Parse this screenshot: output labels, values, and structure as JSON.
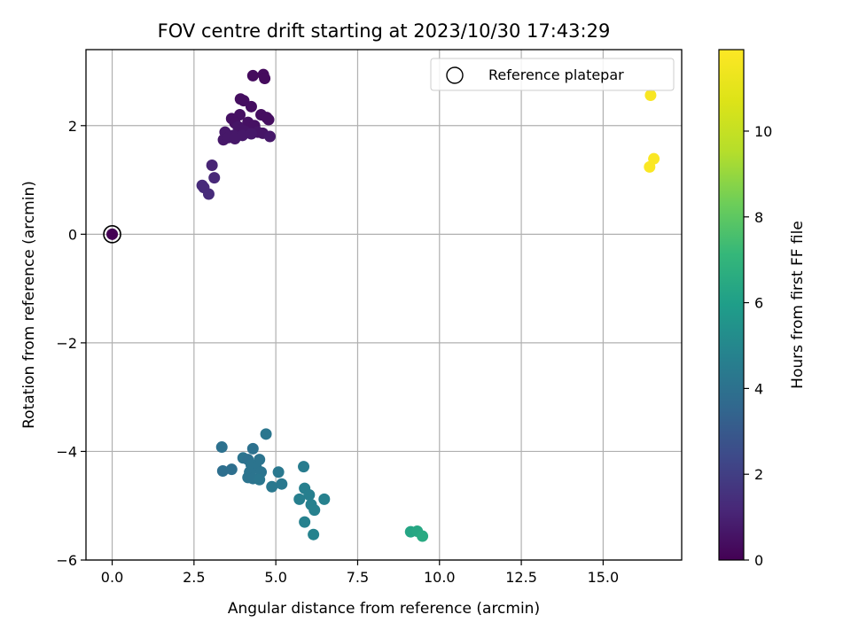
{
  "chart_data": {
    "type": "scatter",
    "title": "FOV centre drift starting at 2023/10/30 17:43:29",
    "xlabel": "Angular distance from reference (arcmin)",
    "ylabel": "Rotation from reference (arcmin)",
    "xlim": [
      -0.8,
      17.4
    ],
    "ylim": [
      -6.0,
      3.4
    ],
    "xticks": [
      0.0,
      2.5,
      5.0,
      7.5,
      10.0,
      12.5,
      15.0
    ],
    "xtick_labels": [
      "0.0",
      "2.5",
      "5.0",
      "7.5",
      "10.0",
      "12.5",
      "15.0"
    ],
    "yticks": [
      -6,
      -4,
      -2,
      0,
      2
    ],
    "ytick_labels": [
      "−6",
      "−4",
      "−2",
      "0",
      "2"
    ],
    "grid": true,
    "legend": {
      "position": "top-right",
      "entries": [
        "Reference platepar"
      ]
    },
    "reference_point": {
      "x": 0.0,
      "y": 0.0
    },
    "colorbar": {
      "label": "Hours from first FF file",
      "colormap": "viridis",
      "range": [
        0,
        11.9
      ],
      "ticks": [
        0,
        2,
        4,
        6,
        8,
        10
      ],
      "tick_labels": [
        "0",
        "2",
        "4",
        "6",
        "8",
        "10"
      ]
    },
    "points": [
      {
        "x": 0.0,
        "y": 0.0,
        "c": 0.0
      },
      {
        "x": 4.3,
        "y": 2.92,
        "c": 0.3
      },
      {
        "x": 4.62,
        "y": 2.94,
        "c": 0.3
      },
      {
        "x": 4.66,
        "y": 2.87,
        "c": 0.3
      },
      {
        "x": 3.92,
        "y": 2.49,
        "c": 0.4
      },
      {
        "x": 4.02,
        "y": 2.46,
        "c": 0.4
      },
      {
        "x": 4.25,
        "y": 2.35,
        "c": 0.4
      },
      {
        "x": 3.9,
        "y": 2.2,
        "c": 0.5
      },
      {
        "x": 4.55,
        "y": 2.2,
        "c": 0.4
      },
      {
        "x": 4.72,
        "y": 2.15,
        "c": 0.4
      },
      {
        "x": 4.78,
        "y": 2.11,
        "c": 0.4
      },
      {
        "x": 3.65,
        "y": 2.13,
        "c": 0.5
      },
      {
        "x": 3.75,
        "y": 2.05,
        "c": 0.5
      },
      {
        "x": 4.15,
        "y": 2.06,
        "c": 0.5
      },
      {
        "x": 4.35,
        "y": 2.0,
        "c": 0.5
      },
      {
        "x": 3.85,
        "y": 1.98,
        "c": 0.6
      },
      {
        "x": 3.95,
        "y": 1.92,
        "c": 0.6
      },
      {
        "x": 4.05,
        "y": 1.9,
        "c": 0.6
      },
      {
        "x": 4.45,
        "y": 1.88,
        "c": 0.6
      },
      {
        "x": 4.6,
        "y": 1.86,
        "c": 0.6
      },
      {
        "x": 3.45,
        "y": 1.88,
        "c": 0.7
      },
      {
        "x": 3.7,
        "y": 1.82,
        "c": 0.7
      },
      {
        "x": 3.98,
        "y": 1.82,
        "c": 0.7
      },
      {
        "x": 4.25,
        "y": 1.85,
        "c": 0.7
      },
      {
        "x": 4.82,
        "y": 1.8,
        "c": 0.7
      },
      {
        "x": 3.4,
        "y": 1.74,
        "c": 0.7
      },
      {
        "x": 3.55,
        "y": 1.78,
        "c": 0.7
      },
      {
        "x": 3.75,
        "y": 1.76,
        "c": 0.7
      },
      {
        "x": 3.05,
        "y": 1.27,
        "c": 1.1
      },
      {
        "x": 3.12,
        "y": 1.04,
        "c": 1.2
      },
      {
        "x": 2.75,
        "y": 0.9,
        "c": 1.3
      },
      {
        "x": 2.8,
        "y": 0.86,
        "c": 1.3
      },
      {
        "x": 2.95,
        "y": 0.74,
        "c": 1.3
      },
      {
        "x": 4.7,
        "y": -3.68,
        "c": 4.2
      },
      {
        "x": 3.35,
        "y": -3.92,
        "c": 4.0
      },
      {
        "x": 4.3,
        "y": -3.95,
        "c": 4.0
      },
      {
        "x": 4.0,
        "y": -4.12,
        "c": 4.1
      },
      {
        "x": 4.15,
        "y": -4.15,
        "c": 4.0
      },
      {
        "x": 4.5,
        "y": -4.15,
        "c": 4.1
      },
      {
        "x": 4.25,
        "y": -4.25,
        "c": 4.1
      },
      {
        "x": 4.4,
        "y": -4.3,
        "c": 4.1
      },
      {
        "x": 3.38,
        "y": -4.36,
        "c": 3.9
      },
      {
        "x": 3.65,
        "y": -4.33,
        "c": 3.9
      },
      {
        "x": 4.2,
        "y": -4.38,
        "c": 4.1
      },
      {
        "x": 4.55,
        "y": -4.38,
        "c": 4.1
      },
      {
        "x": 5.08,
        "y": -4.38,
        "c": 4.3
      },
      {
        "x": 4.15,
        "y": -4.48,
        "c": 4.1
      },
      {
        "x": 4.3,
        "y": -4.5,
        "c": 4.1
      },
      {
        "x": 4.5,
        "y": -4.52,
        "c": 4.2
      },
      {
        "x": 4.88,
        "y": -4.65,
        "c": 4.3
      },
      {
        "x": 5.18,
        "y": -4.6,
        "c": 4.3
      },
      {
        "x": 5.85,
        "y": -4.28,
        "c": 4.5
      },
      {
        "x": 5.88,
        "y": -4.68,
        "c": 4.6
      },
      {
        "x": 6.02,
        "y": -4.8,
        "c": 4.6
      },
      {
        "x": 5.72,
        "y": -4.88,
        "c": 4.6
      },
      {
        "x": 6.48,
        "y": -4.88,
        "c": 4.7
      },
      {
        "x": 6.08,
        "y": -4.98,
        "c": 4.7
      },
      {
        "x": 6.18,
        "y": -5.08,
        "c": 4.7
      },
      {
        "x": 5.88,
        "y": -5.3,
        "c": 4.7
      },
      {
        "x": 6.15,
        "y": -5.53,
        "c": 4.8
      },
      {
        "x": 9.12,
        "y": -5.48,
        "c": 6.3
      },
      {
        "x": 9.32,
        "y": -5.47,
        "c": 6.4
      },
      {
        "x": 9.48,
        "y": -5.56,
        "c": 6.5
      },
      {
        "x": 16.45,
        "y": 2.56,
        "c": 11.7
      },
      {
        "x": 16.55,
        "y": 1.39,
        "c": 11.8
      },
      {
        "x": 16.42,
        "y": 1.24,
        "c": 11.8
      }
    ]
  }
}
